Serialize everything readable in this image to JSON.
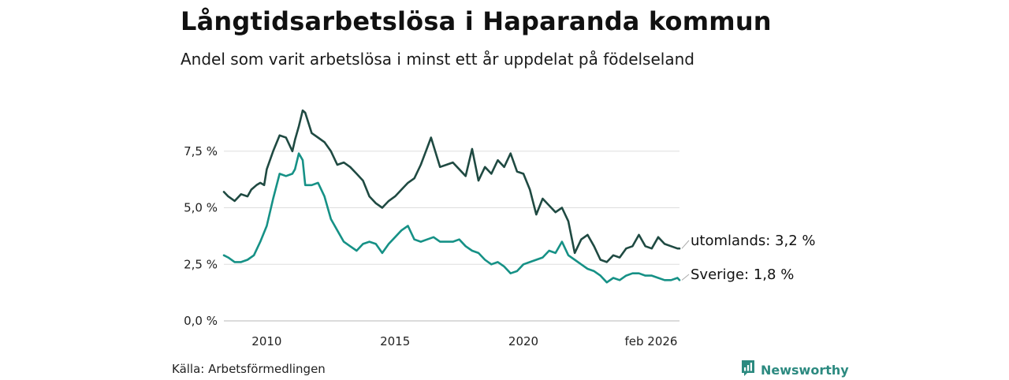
{
  "title": "Långtidsarbetslösa i Haparanda kommun",
  "subtitle": "Andel som varit arbetslösa i minst ett år uppdelat på födelseland",
  "source": "Källa: Arbetsförmedlingen",
  "brand": {
    "name": "Newsworthy",
    "icon": "newsworthy-logo-icon",
    "color": "#2c8a80"
  },
  "chart_data": {
    "type": "line",
    "title": "Långtidsarbetslösa i Haparanda kommun",
    "subtitle": "Andel som varit arbetslösa i minst ett år uppdelat på födelseland",
    "xlabel": "",
    "ylabel": "",
    "ylim": [
      0,
      10
    ],
    "xlim": [
      2008.33,
      2026.08
    ],
    "grid": true,
    "y_ticks": [
      {
        "value": 0,
        "label": "0,0 %"
      },
      {
        "value": 2.5,
        "label": "2,5 %"
      },
      {
        "value": 5,
        "label": "5,0 %"
      },
      {
        "value": 7.5,
        "label": "7,5 %"
      }
    ],
    "x_ticks": [
      {
        "value": 2010,
        "label": "2010"
      },
      {
        "value": 2015,
        "label": "2015"
      },
      {
        "value": 2020,
        "label": "2020"
      },
      {
        "value": 2026.08,
        "label": "feb 2026"
      }
    ],
    "series": [
      {
        "name": "utomlands",
        "label": "utomlands: 3,2 %",
        "color": "#1f4a42",
        "x": [
          2008.33,
          2008.5,
          2008.75,
          2009.0,
          2009.25,
          2009.4,
          2009.6,
          2009.75,
          2009.9,
          2010.0,
          2010.25,
          2010.5,
          2010.75,
          2011.0,
          2011.1,
          2011.25,
          2011.4,
          2011.5,
          2011.75,
          2012.0,
          2012.25,
          2012.5,
          2012.75,
          2013.0,
          2013.25,
          2013.5,
          2013.75,
          2014.0,
          2014.25,
          2014.5,
          2014.75,
          2015.0,
          2015.25,
          2015.5,
          2015.75,
          2016.0,
          2016.2,
          2016.4,
          2016.75,
          2017.0,
          2017.25,
          2017.5,
          2017.75,
          2018.0,
          2018.25,
          2018.5,
          2018.75,
          2019.0,
          2019.25,
          2019.5,
          2019.75,
          2020.0,
          2020.25,
          2020.5,
          2020.75,
          2021.0,
          2021.25,
          2021.5,
          2021.75,
          2022.0,
          2022.25,
          2022.5,
          2022.75,
          2023.0,
          2023.25,
          2023.5,
          2023.75,
          2024.0,
          2024.25,
          2024.5,
          2024.75,
          2025.0,
          2025.25,
          2025.5,
          2025.75,
          2026.0,
          2026.08
        ],
        "values": [
          5.7,
          5.5,
          5.3,
          5.6,
          5.5,
          5.8,
          6.0,
          6.1,
          6.0,
          6.7,
          7.5,
          8.2,
          8.1,
          7.5,
          8.0,
          8.6,
          9.3,
          9.2,
          8.3,
          8.1,
          7.9,
          7.5,
          6.9,
          7.0,
          6.8,
          6.5,
          6.2,
          5.5,
          5.2,
          5.0,
          5.3,
          5.5,
          5.8,
          6.1,
          6.3,
          6.9,
          7.5,
          8.1,
          6.8,
          6.9,
          7.0,
          6.7,
          6.4,
          7.6,
          6.2,
          6.8,
          6.5,
          7.1,
          6.8,
          7.4,
          6.6,
          6.5,
          5.8,
          4.7,
          5.4,
          5.1,
          4.8,
          5.0,
          4.4,
          3.0,
          3.6,
          3.8,
          3.3,
          2.7,
          2.6,
          2.9,
          2.8,
          3.2,
          3.3,
          3.8,
          3.3,
          3.2,
          3.7,
          3.4,
          3.3,
          3.2,
          3.2
        ]
      },
      {
        "name": "Sverige",
        "label": "Sverige: 1,8 %",
        "color": "#169186",
        "x": [
          2008.33,
          2008.5,
          2008.75,
          2009.0,
          2009.25,
          2009.5,
          2009.75,
          2010.0,
          2010.25,
          2010.5,
          2010.75,
          2011.0,
          2011.1,
          2011.25,
          2011.4,
          2011.5,
          2011.75,
          2012.0,
          2012.25,
          2012.5,
          2012.75,
          2013.0,
          2013.25,
          2013.5,
          2013.75,
          2014.0,
          2014.25,
          2014.5,
          2014.75,
          2015.0,
          2015.25,
          2015.5,
          2015.75,
          2016.0,
          2016.25,
          2016.5,
          2016.75,
          2017.0,
          2017.25,
          2017.5,
          2017.75,
          2018.0,
          2018.25,
          2018.5,
          2018.75,
          2019.0,
          2019.25,
          2019.5,
          2019.75,
          2020.0,
          2020.25,
          2020.5,
          2020.75,
          2021.0,
          2021.25,
          2021.5,
          2021.75,
          2022.0,
          2022.25,
          2022.5,
          2022.75,
          2023.0,
          2023.25,
          2023.5,
          2023.75,
          2024.0,
          2024.25,
          2024.5,
          2024.75,
          2025.0,
          2025.25,
          2025.5,
          2025.75,
          2026.0,
          2026.08
        ],
        "values": [
          2.9,
          2.8,
          2.6,
          2.6,
          2.7,
          2.9,
          3.5,
          4.2,
          5.4,
          6.5,
          6.4,
          6.5,
          6.7,
          7.4,
          7.1,
          6.0,
          6.0,
          6.1,
          5.5,
          4.5,
          4.0,
          3.5,
          3.3,
          3.1,
          3.4,
          3.5,
          3.4,
          3.0,
          3.4,
          3.7,
          4.0,
          4.2,
          3.6,
          3.5,
          3.6,
          3.7,
          3.5,
          3.5,
          3.5,
          3.6,
          3.3,
          3.1,
          3.0,
          2.7,
          2.5,
          2.6,
          2.4,
          2.1,
          2.2,
          2.5,
          2.6,
          2.7,
          2.8,
          3.1,
          3.0,
          3.5,
          2.9,
          2.7,
          2.5,
          2.3,
          2.2,
          2.0,
          1.7,
          1.9,
          1.8,
          2.0,
          2.1,
          2.1,
          2.0,
          2.0,
          1.9,
          1.8,
          1.8,
          1.9,
          1.8
        ]
      }
    ]
  }
}
